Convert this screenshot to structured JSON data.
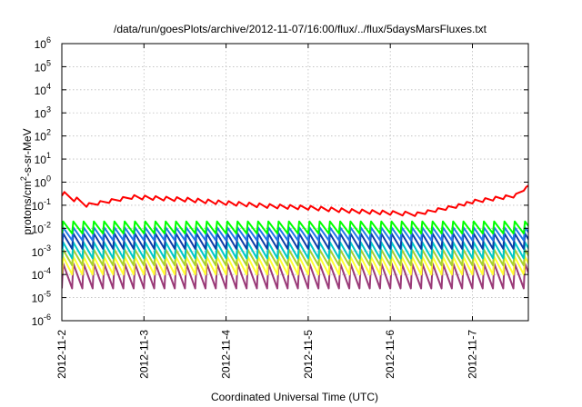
{
  "chart_data": {
    "type": "line",
    "title": "/data/run/goesPlots/archive/2012-11-07/16:00/flux/../flux/5daysMarsFluxes.txt",
    "xlabel": "Coordinated Universal Time (UTC)",
    "ylabel": "protons/cm²-s-sr-MeV",
    "y_scale": "log",
    "ylim_exponents": [
      -6,
      6
    ],
    "y_tick_exponents": [
      -6,
      -5,
      -4,
      -3,
      -2,
      -1,
      0,
      1,
      2,
      3,
      4,
      5,
      6
    ],
    "y_tick_base": "10",
    "x_ticks": [
      "2012-11-2",
      "2012-11-3",
      "2012-11-4",
      "2012-11-5",
      "2012-11-6",
      "2012-11-7"
    ],
    "xlim_days": [
      0,
      5.75
    ],
    "grid": true,
    "legend": "none",
    "series": [
      {
        "color": "#ff0000",
        "style": "sawtooth-trend",
        "points": [
          [
            0,
            0.3
          ],
          [
            0.3,
            0.1
          ],
          [
            0.85,
            0.22
          ],
          [
            1.5,
            0.17
          ],
          [
            2,
            0.12
          ],
          [
            2.5,
            0.09
          ],
          [
            3,
            0.075
          ],
          [
            3.5,
            0.055
          ],
          [
            4,
            0.045
          ],
          [
            4.3,
            0.04
          ],
          [
            4.8,
            0.09
          ],
          [
            5.0,
            0.14
          ],
          [
            5.5,
            0.25
          ],
          [
            5.75,
            1.0
          ]
        ]
      },
      {
        "color": "#00ff00",
        "style": "sawtooth",
        "peak": 0.02,
        "trough": 0.006
      },
      {
        "color": "#1f78e8",
        "style": "sawtooth",
        "peak": 0.011,
        "trough": 0.003
      },
      {
        "color": "#0d3fa8",
        "style": "sawtooth",
        "peak": 0.006,
        "trough": 0.0013
      },
      {
        "color": "#00c8c8",
        "style": "sawtooth",
        "peak": 0.0025,
        "trough": 0.0005
      },
      {
        "color": "#a8d030",
        "style": "sawtooth",
        "peak": 0.0012,
        "trough": 0.00025
      },
      {
        "color": "#ffff33",
        "style": "sawtooth",
        "peak": 0.0006,
        "trough": 0.0001
      },
      {
        "color": "#9a3a78",
        "style": "sawtooth",
        "peak": 0.0003,
        "trough": 2.5e-05
      }
    ],
    "sawtooth_period_days": 0.125
  }
}
